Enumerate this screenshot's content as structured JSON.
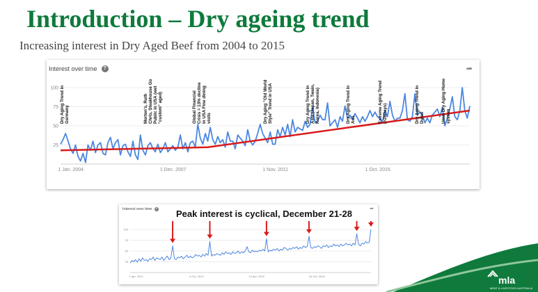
{
  "slide": {
    "title": "Introduction – Dry ageing trend",
    "subtitle": "Increasing interest in Dry Aged Beef from 2004 to 2015"
  },
  "chart1": {
    "header": "Interest over time",
    "help_glyph": "?",
    "share_glyph": "➦",
    "annotations": [
      "Dry Aging Trend in Germany",
      "Morton's, Ruth Chris, Steakhouse Go Public in USA (wet \"custom\" aged)",
      "Global Financial Crisis = 13% decline in USA Fine dining visits",
      "Dry Aging \"Old World Style\" Trend in USA",
      "Dry Aging Trend in Asia (Japan, Twain, Korea, Indonesia)",
      "Dry Aging Trend in Aus",
      "Extreme Aging Trend (>28Days)",
      "Dry Aging Trend in Dubai",
      "Umai Dry Aging Home system"
    ]
  },
  "chart2": {
    "header": "Interest over time",
    "help_glyph": "?",
    "share_glyph": "➦",
    "peak_label": "Peak interest is cyclical, December 21-28"
  },
  "logo": {
    "name": "mla",
    "tagline": "MEAT & LIVESTOCK AUSTRALIA"
  },
  "colors": {
    "title": "#0e7a3c",
    "series": "#4a86e0",
    "trend": "#d81b1b",
    "arrow": "#d81b1b",
    "corner": "#0f7a3c"
  },
  "chart_data": [
    {
      "type": "line",
      "title": "Interest over time",
      "x_ticks": [
        "1 Jan. 2004",
        "1 Dec. 2007",
        "1 Nov. 2011",
        "1 Oct. 2015"
      ],
      "y_ticks": [
        "100",
        "75",
        "50",
        "25"
      ],
      "ylim": [
        0,
        100
      ],
      "series": [
        {
          "name": "Interest",
          "values": [
            26,
            32,
            40,
            30,
            20,
            14,
            25,
            10,
            4,
            14,
            2,
            25,
            18,
            30,
            15,
            25,
            28,
            14,
            12,
            28,
            35,
            20,
            28,
            32,
            12,
            24,
            26,
            16,
            10,
            30,
            12,
            6,
            38,
            18,
            12,
            24,
            28,
            20,
            16,
            26,
            15,
            20,
            28,
            16,
            20,
            24,
            18,
            22,
            38,
            20,
            28,
            16,
            28,
            30,
            22,
            52,
            34,
            26,
            40,
            30,
            48,
            32,
            26,
            36,
            28,
            32,
            22,
            42,
            30,
            30,
            20,
            38,
            34,
            30,
            24,
            45,
            30,
            25,
            30,
            40,
            52,
            40,
            34,
            28,
            42,
            26,
            26,
            45,
            36,
            48,
            38,
            52,
            36,
            58,
            42,
            48,
            46,
            44,
            56,
            48,
            52,
            74,
            54,
            56,
            64,
            58,
            58,
            80,
            50,
            54,
            58,
            48,
            62,
            56,
            76,
            60,
            64,
            58,
            66,
            60,
            54,
            62,
            56,
            62,
            70,
            62,
            68,
            62,
            60,
            55,
            70,
            62,
            82,
            64,
            56,
            60,
            60,
            70,
            92,
            58,
            56,
            62,
            92,
            64,
            68,
            64,
            54,
            60,
            54,
            64,
            68,
            72,
            62,
            74,
            50,
            60,
            72,
            88,
            62,
            58,
            70,
            100,
            70,
            60,
            76
          ]
        },
        {
          "name": "Trend",
          "values": [
            18,
            22,
            70
          ]
        }
      ]
    },
    {
      "type": "line",
      "title": "Interest over time",
      "x_ticks": [
        "1 Apr. 2012",
        "4 Oct. 2013",
        "13 Apr. 2015",
        "16 Oct. 2016"
      ],
      "y_ticks": [
        "100",
        "75",
        "50",
        "25"
      ],
      "ylim": [
        0,
        100
      ],
      "series": [
        {
          "name": "Interest",
          "values": [
            22,
            28,
            25,
            30,
            24,
            32,
            26,
            34,
            28,
            30,
            26,
            32,
            30,
            36,
            28,
            34,
            32,
            30,
            36,
            28,
            34,
            38,
            30,
            34,
            62,
            32,
            30,
            36,
            34,
            38,
            32,
            36,
            40,
            34,
            38,
            34,
            36,
            42,
            38,
            40,
            36,
            42,
            38,
            44,
            40,
            72,
            38,
            42,
            40,
            44,
            42,
            40,
            46,
            42,
            48,
            44,
            46,
            42,
            48,
            44,
            46,
            50,
            44,
            48,
            46,
            50,
            60,
            48,
            46,
            52,
            48,
            50,
            48,
            52,
            50,
            54,
            50,
            78,
            48,
            52,
            50,
            54,
            52,
            56,
            50,
            54,
            52,
            58,
            56,
            52,
            56,
            54,
            58,
            56,
            60,
            54,
            58,
            56,
            62,
            58,
            60,
            84,
            58,
            56,
            60,
            58,
            62,
            60,
            56,
            62,
            60,
            64,
            58,
            62,
            60,
            66,
            62,
            64,
            60,
            66,
            62,
            64,
            68,
            64,
            66,
            62,
            68,
            64,
            90,
            66,
            62,
            68,
            66,
            72,
            68,
            70,
            100
          ]
        }
      ]
    }
  ]
}
